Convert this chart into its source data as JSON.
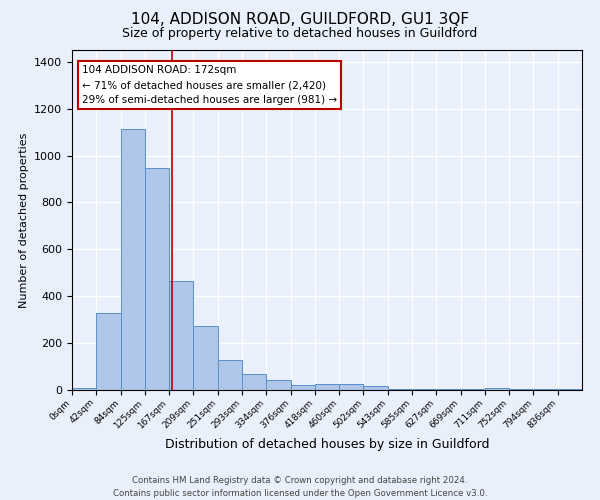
{
  "title": "104, ADDISON ROAD, GUILDFORD, GU1 3QF",
  "subtitle": "Size of property relative to detached houses in Guildford",
  "xlabel": "Distribution of detached houses by size in Guildford",
  "ylabel": "Number of detached properties",
  "footnote1": "Contains HM Land Registry data © Crown copyright and database right 2024.",
  "footnote2": "Contains public sector information licensed under the Open Government Licence v3.0.",
  "bar_labels": [
    "0sqm",
    "42sqm",
    "84sqm",
    "125sqm",
    "167sqm",
    "209sqm",
    "251sqm",
    "293sqm",
    "334sqm",
    "376sqm",
    "418sqm",
    "460sqm",
    "502sqm",
    "543sqm",
    "585sqm",
    "627sqm",
    "669sqm",
    "711sqm",
    "752sqm",
    "794sqm",
    "836sqm"
  ],
  "bar_heights": [
    10,
    328,
    1113,
    947,
    465,
    274,
    127,
    67,
    44,
    20,
    25,
    25,
    15,
    5,
    5,
    5,
    5,
    10,
    3,
    3,
    3
  ],
  "bar_color": "#aec6e8",
  "bar_edge_color": "#5b8fc9",
  "bg_color": "#eaf0fb",
  "grid_color": "#ffffff",
  "vline_x_index": 4.12,
  "vline_color": "#bb0000",
  "annotation_line1": "104 ADDISON ROAD: 172sqm",
  "annotation_line2": "← 71% of detached houses are smaller (2,420)",
  "annotation_line3": "29% of semi-detached houses are larger (981) →",
  "annotation_box_color": "#ffffff",
  "annotation_box_edge": "#bb0000",
  "ylim": [
    0,
    1450
  ],
  "yticks": [
    0,
    200,
    400,
    600,
    800,
    1000,
    1200,
    1400
  ]
}
